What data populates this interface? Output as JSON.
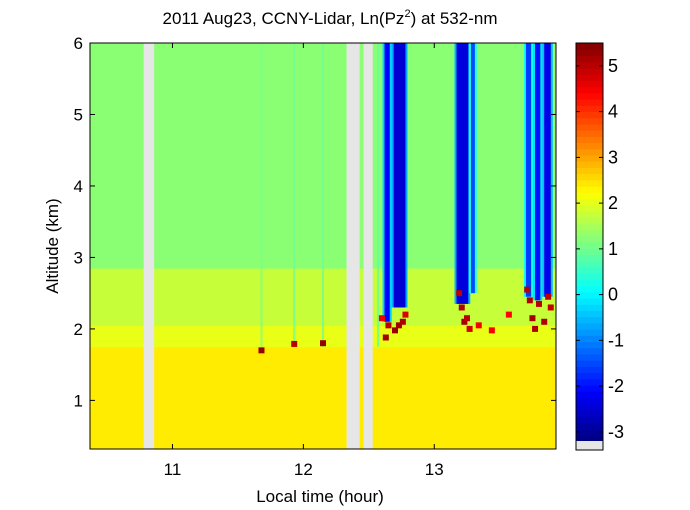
{
  "chart_data": {
    "type": "heatmap",
    "title": "2011 Aug23, CCNY-Lidar, Ln(Pz",
    "title_superscript": "2",
    "title_suffix": ") at 532-nm",
    "xlabel": "Local time (hour)",
    "ylabel": "Altitude (km)",
    "xlim": [
      10.37,
      13.93
    ],
    "ylim": [
      0.32,
      6.0
    ],
    "xticks": [
      11,
      12,
      13
    ],
    "xtick_labels": [
      "11",
      "12",
      "13"
    ],
    "yticks": [
      1,
      2,
      3,
      4,
      5,
      6
    ],
    "ytick_labels": [
      "1",
      "2",
      "3",
      "4",
      "5",
      "6"
    ],
    "colorbar": {
      "range": [
        -3.2,
        5.5
      ],
      "ticks": [
        -3,
        -2,
        -1,
        0,
        1,
        2,
        3,
        4,
        5
      ],
      "tick_labels": [
        "-3",
        "-2",
        "-1",
        "0",
        "1",
        "2",
        "3",
        "4",
        "5"
      ],
      "colormap": "jet",
      "missing_color": "#e6e6e6"
    },
    "background_profile": [
      {
        "alt_from": 0.32,
        "alt_to": 1.75,
        "value": 2.4
      },
      {
        "alt_from": 1.75,
        "alt_to": 2.05,
        "value": 2.05
      },
      {
        "alt_from": 2.05,
        "alt_to": 2.85,
        "value": 1.75
      },
      {
        "alt_from": 2.85,
        "alt_to": 6.0,
        "value": 1.25
      }
    ],
    "missing_data_intervals": [
      [
        10.78,
        10.86
      ],
      [
        12.33,
        12.43
      ],
      [
        12.46,
        12.53
      ]
    ],
    "thin_streaks": [
      {
        "time": 11.68,
        "value": 1.1
      },
      {
        "time": 11.93,
        "value": 1.0
      },
      {
        "time": 12.15,
        "value": 1.0
      },
      {
        "time": 12.57,
        "value": 0.9
      }
    ],
    "cloud_columns": [
      {
        "time_from": 12.62,
        "time_to": 12.66,
        "base_km": 2.1,
        "value": -2.1
      },
      {
        "time_from": 12.69,
        "time_to": 12.78,
        "base_km": 2.3,
        "value": -2.5
      },
      {
        "time_from": 13.17,
        "time_to": 13.26,
        "base_km": 2.35,
        "value": -2.4
      },
      {
        "time_from": 13.28,
        "time_to": 13.31,
        "base_km": 2.5,
        "value": -1.5
      },
      {
        "time_from": 13.7,
        "time_to": 13.74,
        "base_km": 2.45,
        "value": -1.6
      },
      {
        "time_from": 13.77,
        "time_to": 13.81,
        "base_km": 2.4,
        "value": -2.0
      },
      {
        "time_from": 13.84,
        "time_to": 13.89,
        "base_km": 2.45,
        "value": -2.3
      }
    ],
    "cloud_base_returns": [
      {
        "time": 12.63,
        "alt": 1.88,
        "value": 5.2
      },
      {
        "time": 12.65,
        "alt": 2.05,
        "value": 5.0
      },
      {
        "time": 12.7,
        "alt": 1.98,
        "value": 5.3
      },
      {
        "time": 12.73,
        "alt": 2.05,
        "value": 5.2
      },
      {
        "time": 12.76,
        "alt": 2.1,
        "value": 5.1
      },
      {
        "time": 12.78,
        "alt": 2.2,
        "value": 4.7
      },
      {
        "time": 12.6,
        "alt": 2.15,
        "value": 4.5
      },
      {
        "time": 13.19,
        "alt": 2.5,
        "value": 5.0
      },
      {
        "time": 13.21,
        "alt": 2.3,
        "value": 5.1
      },
      {
        "time": 13.23,
        "alt": 2.1,
        "value": 5.2
      },
      {
        "time": 13.25,
        "alt": 2.15,
        "value": 5.0
      },
      {
        "time": 13.27,
        "alt": 2.0,
        "value": 4.8
      },
      {
        "time": 13.34,
        "alt": 2.05,
        "value": 4.5
      },
      {
        "time": 13.44,
        "alt": 1.98,
        "value": 4.5
      },
      {
        "time": 13.57,
        "alt": 2.2,
        "value": 4.4
      },
      {
        "time": 13.71,
        "alt": 2.55,
        "value": 5.0
      },
      {
        "time": 13.73,
        "alt": 2.4,
        "value": 5.1
      },
      {
        "time": 13.75,
        "alt": 2.15,
        "value": 5.2
      },
      {
        "time": 13.77,
        "alt": 2.0,
        "value": 5.1
      },
      {
        "time": 13.8,
        "alt": 2.35,
        "value": 5.0
      },
      {
        "time": 13.84,
        "alt": 2.1,
        "value": 5.1
      },
      {
        "time": 13.87,
        "alt": 2.45,
        "value": 5.0
      },
      {
        "time": 13.89,
        "alt": 2.3,
        "value": 4.9
      },
      {
        "time": 11.68,
        "alt": 1.7,
        "value": 5.3
      },
      {
        "time": 11.93,
        "alt": 1.79,
        "value": 5.0
      },
      {
        "time": 12.15,
        "alt": 1.8,
        "value": 5.3
      }
    ]
  }
}
